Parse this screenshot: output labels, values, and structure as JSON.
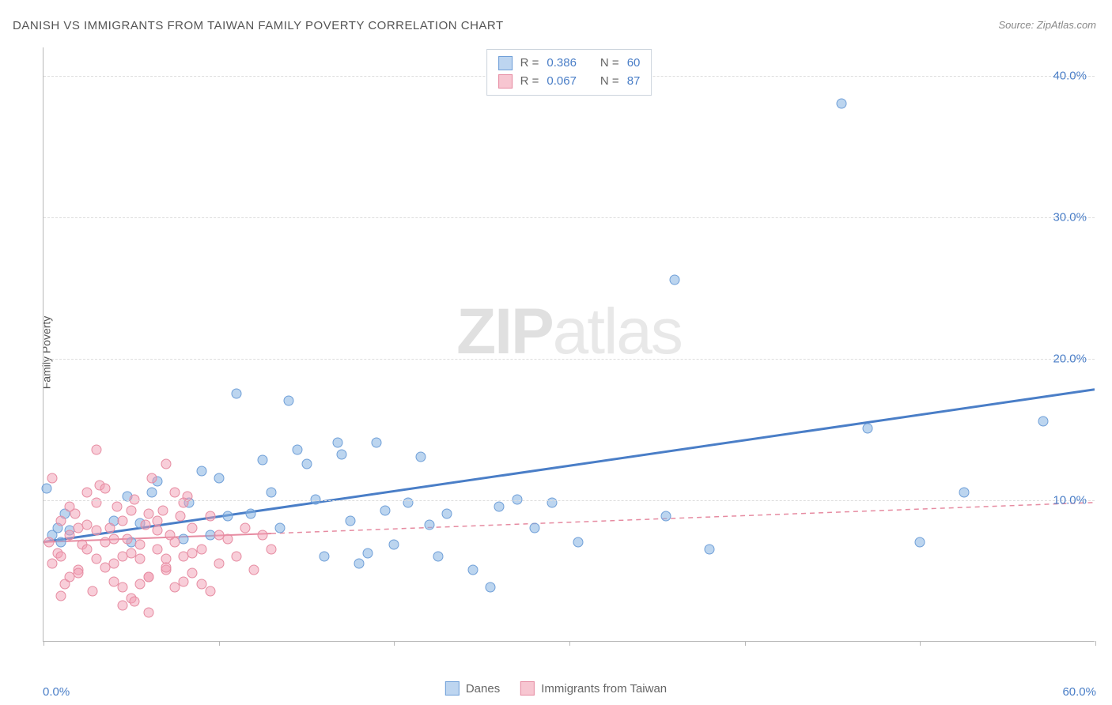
{
  "title": "DANISH VS IMMIGRANTS FROM TAIWAN FAMILY POVERTY CORRELATION CHART",
  "source": "Source: ZipAtlas.com",
  "y_axis_label": "Family Poverty",
  "watermark_bold": "ZIP",
  "watermark_light": "atlas",
  "chart": {
    "type": "scatter",
    "xlim": [
      0,
      60
    ],
    "ylim": [
      0,
      42
    ],
    "y_ticks": [
      10,
      20,
      30,
      40
    ],
    "y_tick_labels": [
      "10.0%",
      "20.0%",
      "30.0%",
      "40.0%"
    ],
    "x_tick_positions": [
      0,
      10,
      20,
      30,
      40,
      50,
      60
    ],
    "x_min_label": "0.0%",
    "x_max_label": "60.0%",
    "background_color": "#ffffff",
    "grid_color": "#dddddd",
    "axis_color": "#b8b8b8",
    "series": [
      {
        "name": "Danes",
        "color_fill": "#bdd5f0",
        "color_stroke": "#6f9fd8",
        "marker_size": 13,
        "R": "0.386",
        "N": "60",
        "trend": {
          "x1": 0,
          "y1": 7.0,
          "x2": 60,
          "y2": 17.8,
          "solid_until_x": 60,
          "stroke_width": 3
        },
        "points": [
          [
            0.2,
            10.8
          ],
          [
            0.5,
            7.5
          ],
          [
            0.8,
            8.0
          ],
          [
            1.0,
            7.0
          ],
          [
            1.2,
            9.0
          ],
          [
            1.5,
            7.8
          ],
          [
            4.0,
            8.5
          ],
          [
            4.8,
            10.2
          ],
          [
            5.0,
            7.0
          ],
          [
            5.5,
            8.3
          ],
          [
            6.2,
            10.5
          ],
          [
            6.5,
            11.3
          ],
          [
            8.0,
            7.2
          ],
          [
            8.3,
            9.8
          ],
          [
            9.0,
            12.0
          ],
          [
            9.5,
            7.5
          ],
          [
            10.0,
            11.5
          ],
          [
            10.5,
            8.8
          ],
          [
            11.0,
            17.5
          ],
          [
            11.8,
            9.0
          ],
          [
            12.5,
            12.8
          ],
          [
            13.0,
            10.5
          ],
          [
            13.5,
            8.0
          ],
          [
            14.0,
            17.0
          ],
          [
            14.5,
            13.5
          ],
          [
            15.0,
            12.5
          ],
          [
            15.5,
            10.0
          ],
          [
            16.0,
            6.0
          ],
          [
            16.8,
            14.0
          ],
          [
            17.0,
            13.2
          ],
          [
            17.5,
            8.5
          ],
          [
            18.0,
            5.5
          ],
          [
            18.5,
            6.2
          ],
          [
            19.0,
            14.0
          ],
          [
            19.5,
            9.2
          ],
          [
            20.0,
            6.8
          ],
          [
            20.8,
            9.8
          ],
          [
            21.5,
            13.0
          ],
          [
            22.0,
            8.2
          ],
          [
            22.5,
            6.0
          ],
          [
            23.0,
            9.0
          ],
          [
            24.5,
            5.0
          ],
          [
            25.5,
            3.8
          ],
          [
            26.0,
            9.5
          ],
          [
            27.0,
            10.0
          ],
          [
            28.0,
            8.0
          ],
          [
            29.0,
            9.8
          ],
          [
            30.5,
            7.0
          ],
          [
            35.5,
            8.8
          ],
          [
            36.0,
            25.5
          ],
          [
            38.0,
            6.5
          ],
          [
            45.5,
            38.0
          ],
          [
            47.0,
            15.0
          ],
          [
            50.0,
            7.0
          ],
          [
            52.5,
            10.5
          ],
          [
            57.0,
            15.5
          ]
        ]
      },
      {
        "name": "Immigrants from Taiwan",
        "color_fill": "#f7c6d1",
        "color_stroke": "#e68ba1",
        "marker_size": 13,
        "R": "0.067",
        "N": "87",
        "trend": {
          "x1": 0,
          "y1": 7.0,
          "x2": 60,
          "y2": 9.8,
          "solid_until_x": 13,
          "stroke_width": 2
        },
        "points": [
          [
            0.3,
            7.0
          ],
          [
            0.5,
            5.5
          ],
          [
            0.8,
            6.2
          ],
          [
            1.0,
            8.5
          ],
          [
            1.2,
            4.0
          ],
          [
            1.5,
            7.5
          ],
          [
            1.8,
            9.0
          ],
          [
            2.0,
            5.0
          ],
          [
            2.2,
            6.8
          ],
          [
            2.5,
            10.5
          ],
          [
            2.8,
            3.5
          ],
          [
            3.0,
            7.8
          ],
          [
            3.2,
            11.0
          ],
          [
            3.5,
            5.2
          ],
          [
            3.8,
            8.0
          ],
          [
            4.0,
            4.2
          ],
          [
            4.2,
            9.5
          ],
          [
            4.5,
            6.0
          ],
          [
            4.8,
            7.2
          ],
          [
            5.0,
            3.0
          ],
          [
            5.2,
            10.0
          ],
          [
            5.5,
            5.8
          ],
          [
            5.8,
            8.2
          ],
          [
            6.0,
            4.5
          ],
          [
            6.2,
            11.5
          ],
          [
            6.5,
            6.5
          ],
          [
            6.8,
            9.2
          ],
          [
            7.0,
            5.0
          ],
          [
            7.2,
            7.5
          ],
          [
            7.5,
            3.8
          ],
          [
            7.8,
            8.8
          ],
          [
            8.0,
            6.0
          ],
          [
            8.2,
            10.2
          ],
          [
            8.5,
            4.8
          ],
          [
            3.0,
            13.5
          ],
          [
            4.5,
            2.5
          ],
          [
            5.2,
            2.8
          ],
          [
            6.0,
            2.0
          ],
          [
            7.0,
            12.5
          ],
          [
            1.0,
            3.2
          ],
          [
            1.5,
            4.5
          ],
          [
            2.0,
            8.0
          ],
          [
            2.5,
            6.5
          ],
          [
            3.0,
            9.8
          ],
          [
            3.5,
            7.0
          ],
          [
            4.0,
            5.5
          ],
          [
            4.5,
            8.5
          ],
          [
            5.0,
            6.2
          ],
          [
            5.5,
            4.0
          ],
          [
            6.0,
            9.0
          ],
          [
            6.5,
            7.8
          ],
          [
            7.0,
            5.8
          ],
          [
            7.5,
            10.5
          ],
          [
            8.0,
            4.2
          ],
          [
            8.5,
            8.0
          ],
          [
            9.0,
            6.5
          ],
          [
            9.5,
            3.5
          ],
          [
            10.0,
            7.5
          ],
          [
            0.5,
            11.5
          ],
          [
            1.0,
            6.0
          ],
          [
            1.5,
            9.5
          ],
          [
            2.0,
            4.8
          ],
          [
            2.5,
            8.2
          ],
          [
            3.0,
            5.8
          ],
          [
            3.5,
            10.8
          ],
          [
            4.0,
            7.2
          ],
          [
            4.5,
            3.8
          ],
          [
            5.0,
            9.2
          ],
          [
            5.5,
            6.8
          ],
          [
            6.0,
            4.5
          ],
          [
            6.5,
            8.5
          ],
          [
            7.0,
            5.2
          ],
          [
            7.5,
            7.0
          ],
          [
            8.0,
            9.8
          ],
          [
            8.5,
            6.2
          ],
          [
            9.0,
            4.0
          ],
          [
            9.5,
            8.8
          ],
          [
            10.0,
            5.5
          ],
          [
            10.5,
            7.2
          ],
          [
            11.0,
            6.0
          ],
          [
            11.5,
            8.0
          ],
          [
            12.0,
            5.0
          ],
          [
            12.5,
            7.5
          ],
          [
            13.0,
            6.5
          ]
        ]
      }
    ]
  },
  "legend_top": {
    "r_label": "R =",
    "n_label": "N ="
  },
  "legend_bottom": {
    "series1": "Danes",
    "series2": "Immigrants from Taiwan"
  }
}
